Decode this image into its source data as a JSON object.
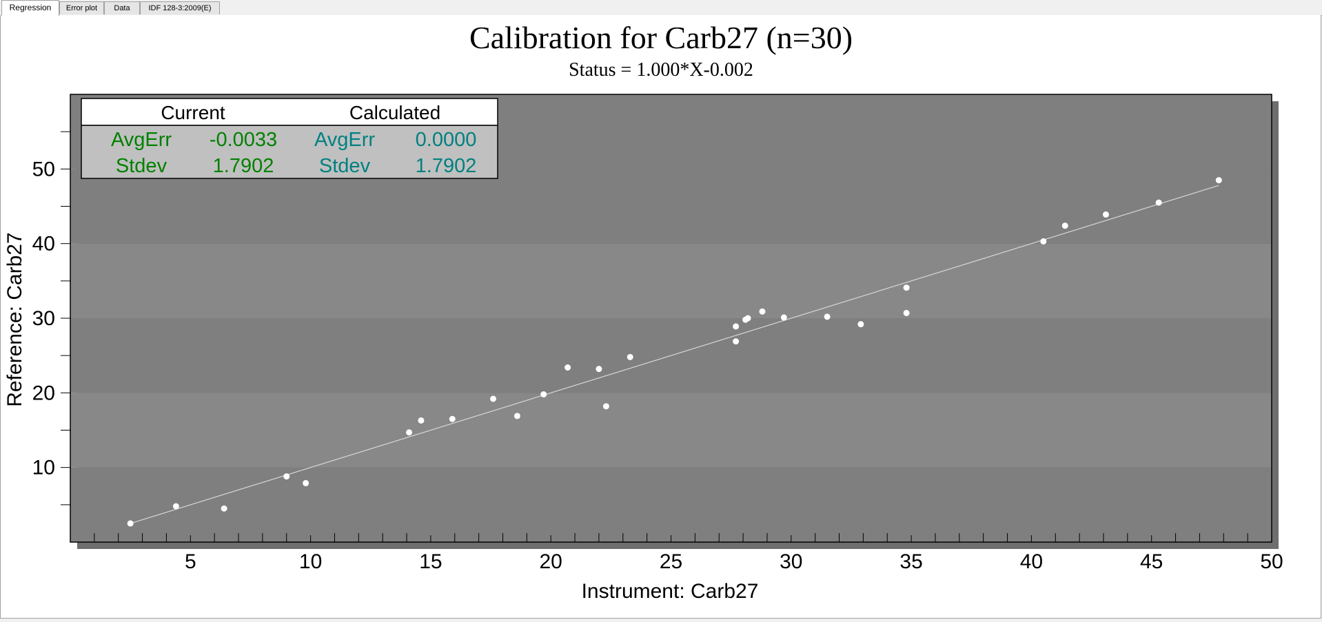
{
  "tabs": [
    {
      "label": "Regression",
      "active": true
    },
    {
      "label": "Error plot",
      "active": false
    },
    {
      "label": "Data",
      "active": false
    },
    {
      "label": "IDF 128-3:2009(E)",
      "active": false
    }
  ],
  "stats_table": {
    "current_header": "Current",
    "calculated_header": "Calculated",
    "rows": [
      {
        "current_label": "AvgErr",
        "current_value": "-0.0033",
        "calc_label": "AvgErr",
        "calc_value": "0.0000"
      },
      {
        "current_label": "Stdev",
        "current_value": "1.7902",
        "calc_label": "Stdev",
        "calc_value": "1.7902"
      }
    ],
    "current_color": "#008000",
    "calculated_color": "#008080"
  },
  "chart_data": {
    "type": "scatter",
    "title": "Calibration for Carb27 (n=30)",
    "subtitle": "Status = 1.000*X-0.002",
    "xlabel": "Instrument: Carb27",
    "ylabel": "Reference: Carb27",
    "xlim": [
      0,
      50
    ],
    "ylim": [
      0,
      60
    ],
    "xticks": [
      5,
      10,
      15,
      20,
      25,
      30,
      35,
      40,
      45,
      50
    ],
    "yticks": [
      10,
      20,
      30,
      40,
      50
    ],
    "regression_line": {
      "slope": 1.0,
      "intercept": -0.002,
      "x_range": [
        2.5,
        47.8
      ]
    },
    "points": [
      {
        "x": 2.5,
        "y": 2.5
      },
      {
        "x": 4.4,
        "y": 4.8
      },
      {
        "x": 6.4,
        "y": 4.5
      },
      {
        "x": 9.0,
        "y": 8.8
      },
      {
        "x": 9.8,
        "y": 7.9
      },
      {
        "x": 14.1,
        "y": 14.7
      },
      {
        "x": 14.6,
        "y": 16.3
      },
      {
        "x": 15.9,
        "y": 16.5
      },
      {
        "x": 17.6,
        "y": 19.2
      },
      {
        "x": 18.6,
        "y": 16.9
      },
      {
        "x": 19.7,
        "y": 19.8
      },
      {
        "x": 20.7,
        "y": 23.4
      },
      {
        "x": 22.0,
        "y": 23.2
      },
      {
        "x": 22.3,
        "y": 18.2
      },
      {
        "x": 23.3,
        "y": 24.8
      },
      {
        "x": 27.7,
        "y": 26.9
      },
      {
        "x": 27.7,
        "y": 28.9
      },
      {
        "x": 28.1,
        "y": 29.8
      },
      {
        "x": 28.2,
        "y": 30.0
      },
      {
        "x": 28.8,
        "y": 30.9
      },
      {
        "x": 29.7,
        "y": 30.1
      },
      {
        "x": 31.5,
        "y": 30.2
      },
      {
        "x": 32.9,
        "y": 29.2
      },
      {
        "x": 34.8,
        "y": 34.1
      },
      {
        "x": 34.8,
        "y": 30.7
      },
      {
        "x": 40.5,
        "y": 40.3
      },
      {
        "x": 41.4,
        "y": 42.4
      },
      {
        "x": 43.1,
        "y": 43.9
      },
      {
        "x": 45.3,
        "y": 45.5
      },
      {
        "x": 47.8,
        "y": 48.5
      }
    ],
    "grid": true,
    "colors": {
      "plot_band_dark": "#7f7f7f",
      "plot_band_light": "#888888",
      "shadow": "#6e6e6e",
      "points": "#ffffff",
      "line": "#d8d8d8"
    }
  }
}
